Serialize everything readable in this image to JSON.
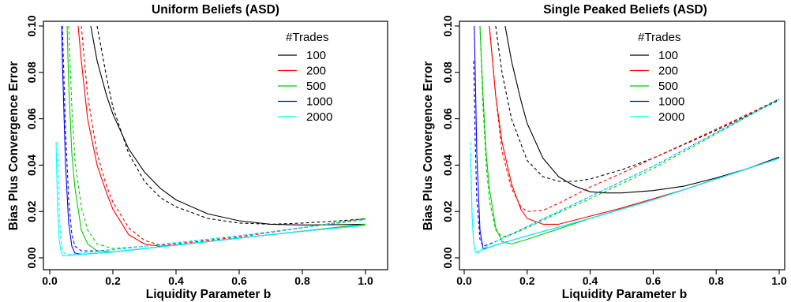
{
  "chart_data": [
    {
      "type": "line",
      "title": "Uniform Beliefs (ASD)",
      "xlabel": "Liquidity Parameter b",
      "ylabel": "Bias Plus Convergence Error",
      "xlim": [
        0,
        1.0
      ],
      "ylim": [
        0,
        0.1
      ],
      "xticks": [
        "0.0",
        "0.2",
        "0.4",
        "0.6",
        "0.8",
        "1.0"
      ],
      "yticks": [
        "0.00",
        "0.02",
        "0.04",
        "0.06",
        "0.08",
        "0.10"
      ],
      "legend": {
        "title": "#Trades",
        "position": "top-right",
        "items": [
          {
            "label": "100",
            "color": "#000000"
          },
          {
            "label": "200",
            "color": "#ff0000"
          },
          {
            "label": "500",
            "color": "#00cd00"
          },
          {
            "label": "1000",
            "color": "#0000ff"
          },
          {
            "label": "2000",
            "color": "#00ffff"
          }
        ]
      },
      "series": [
        {
          "name": "100",
          "style": "solid",
          "color": "#000000",
          "x": [
            0.13,
            0.15,
            0.18,
            0.2,
            0.25,
            0.3,
            0.35,
            0.4,
            0.5,
            0.6,
            0.7,
            0.8,
            0.9,
            1.0
          ],
          "y": [
            0.1,
            0.085,
            0.07,
            0.062,
            0.047,
            0.037,
            0.03,
            0.025,
            0.019,
            0.016,
            0.0145,
            0.0142,
            0.0143,
            0.0145
          ]
        },
        {
          "name": "100",
          "style": "dashed",
          "color": "#000000",
          "x": [
            0.15,
            0.18,
            0.2,
            0.25,
            0.3,
            0.35,
            0.4,
            0.5,
            0.6,
            0.7,
            0.8,
            0.9,
            1.0
          ],
          "y": [
            0.1,
            0.078,
            0.065,
            0.045,
            0.033,
            0.026,
            0.022,
            0.017,
            0.015,
            0.0145,
            0.015,
            0.0158,
            0.0168
          ]
        },
        {
          "name": "200",
          "style": "solid",
          "color": "#ff0000",
          "x": [
            0.09,
            0.1,
            0.12,
            0.15,
            0.18,
            0.2,
            0.25,
            0.3,
            0.35,
            0.4,
            0.6,
            0.8,
            1.0
          ],
          "y": [
            0.1,
            0.085,
            0.06,
            0.04,
            0.028,
            0.021,
            0.01,
            0.006,
            0.005,
            0.0055,
            0.0085,
            0.0115,
            0.0145
          ]
        },
        {
          "name": "200",
          "style": "dashed",
          "color": "#ff0000",
          "x": [
            0.1,
            0.12,
            0.15,
            0.18,
            0.2,
            0.25,
            0.3,
            0.35,
            0.4,
            0.6,
            0.8,
            1.0
          ],
          "y": [
            0.1,
            0.07,
            0.045,
            0.031,
            0.024,
            0.013,
            0.0075,
            0.0055,
            0.006,
            0.009,
            0.013,
            0.017
          ]
        },
        {
          "name": "500",
          "style": "solid",
          "color": "#00cd00",
          "x": [
            0.055,
            0.06,
            0.07,
            0.08,
            0.1,
            0.12,
            0.15,
            0.2,
            0.3,
            0.4,
            0.6,
            0.8,
            1.0
          ],
          "y": [
            0.1,
            0.075,
            0.045,
            0.03,
            0.012,
            0.006,
            0.003,
            0.0025,
            0.004,
            0.0055,
            0.0085,
            0.0115,
            0.0145
          ]
        },
        {
          "name": "500",
          "style": "dashed",
          "color": "#00cd00",
          "x": [
            0.06,
            0.07,
            0.08,
            0.1,
            0.12,
            0.15,
            0.2,
            0.3,
            0.4,
            0.6,
            0.8,
            1.0
          ],
          "y": [
            0.1,
            0.065,
            0.042,
            0.022,
            0.012,
            0.006,
            0.004,
            0.005,
            0.0065,
            0.0095,
            0.013,
            0.017
          ]
        },
        {
          "name": "1000",
          "style": "solid",
          "color": "#0000ff",
          "x": [
            0.038,
            0.04,
            0.05,
            0.06,
            0.07,
            0.08,
            0.1,
            0.15,
            0.2,
            0.4,
            0.6,
            0.8,
            1.0
          ],
          "y": [
            0.1,
            0.085,
            0.04,
            0.015,
            0.005,
            0.002,
            0.0015,
            0.002,
            0.0025,
            0.0055,
            0.0085,
            0.0115,
            0.014
          ]
        },
        {
          "name": "1000",
          "style": "dashed",
          "color": "#0000ff",
          "x": [
            0.04,
            0.05,
            0.06,
            0.07,
            0.08,
            0.1,
            0.15,
            0.2,
            0.4,
            0.6,
            0.8,
            1.0
          ],
          "y": [
            0.1,
            0.055,
            0.025,
            0.01,
            0.005,
            0.003,
            0.003,
            0.0035,
            0.0065,
            0.0095,
            0.013,
            0.0165
          ]
        },
        {
          "name": "2000",
          "style": "solid",
          "color": "#00ffff",
          "x": [
            0.02,
            0.025,
            0.03,
            0.035,
            0.04,
            0.05,
            0.06,
            0.1,
            0.2,
            0.4,
            0.6,
            0.8,
            1.0
          ],
          "y": [
            0.05,
            0.02,
            0.008,
            0.003,
            0.001,
            0.0008,
            0.001,
            0.0015,
            0.0025,
            0.0055,
            0.0085,
            0.0115,
            0.014
          ]
        },
        {
          "name": "2000",
          "style": "dashed",
          "color": "#00ffff",
          "x": [
            0.025,
            0.03,
            0.035,
            0.04,
            0.05,
            0.06,
            0.1,
            0.2,
            0.4,
            0.6,
            0.8,
            1.0
          ],
          "y": [
            0.05,
            0.02,
            0.008,
            0.003,
            0.0015,
            0.0015,
            0.002,
            0.0035,
            0.0065,
            0.0095,
            0.013,
            0.0165
          ]
        }
      ]
    },
    {
      "type": "line",
      "title": "Single Peaked Beliefs (ASD)",
      "xlabel": "Liquidity Parameter b",
      "ylabel": "Bias Plus Convergence Error",
      "xlim": [
        0,
        1.0
      ],
      "ylim": [
        0,
        0.1
      ],
      "xticks": [
        "0.0",
        "0.2",
        "0.4",
        "0.6",
        "0.8",
        "1.0"
      ],
      "yticks": [
        "0.00",
        "0.02",
        "0.04",
        "0.06",
        "0.08",
        "0.10"
      ],
      "legend": {
        "title": "#Trades",
        "position": "top-right",
        "items": [
          {
            "label": "100",
            "color": "#000000"
          },
          {
            "label": "200",
            "color": "#ff0000"
          },
          {
            "label": "500",
            "color": "#00cd00"
          },
          {
            "label": "1000",
            "color": "#0000ff"
          },
          {
            "label": "2000",
            "color": "#00ffff"
          }
        ]
      },
      "series": [
        {
          "name": "100",
          "style": "solid",
          "color": "#000000",
          "x": [
            0.13,
            0.15,
            0.18,
            0.2,
            0.25,
            0.3,
            0.35,
            0.4,
            0.45,
            0.5,
            0.6,
            0.7,
            0.8,
            0.9,
            1.0
          ],
          "y": [
            0.1,
            0.085,
            0.068,
            0.058,
            0.043,
            0.035,
            0.031,
            0.0285,
            0.028,
            0.028,
            0.029,
            0.031,
            0.0345,
            0.0385,
            0.0435
          ]
        },
        {
          "name": "100",
          "style": "dashed",
          "color": "#000000",
          "x": [
            0.1,
            0.12,
            0.15,
            0.2,
            0.25,
            0.3,
            0.35,
            0.4,
            0.5,
            0.6,
            0.7,
            0.8,
            0.9,
            1.0
          ],
          "y": [
            0.1,
            0.08,
            0.06,
            0.042,
            0.035,
            0.033,
            0.033,
            0.034,
            0.038,
            0.043,
            0.049,
            0.055,
            0.0615,
            0.068
          ]
        },
        {
          "name": "200",
          "style": "solid",
          "color": "#ff0000",
          "x": [
            0.08,
            0.1,
            0.12,
            0.15,
            0.18,
            0.2,
            0.25,
            0.3,
            0.4,
            0.5,
            0.6,
            0.7,
            0.8,
            0.9,
            1.0
          ],
          "y": [
            0.1,
            0.07,
            0.05,
            0.032,
            0.021,
            0.017,
            0.0145,
            0.0145,
            0.018,
            0.0215,
            0.0255,
            0.0295,
            0.034,
            0.0385,
            0.043
          ]
        },
        {
          "name": "200",
          "style": "dashed",
          "color": "#ff0000",
          "x": [
            0.08,
            0.1,
            0.12,
            0.15,
            0.18,
            0.2,
            0.25,
            0.3,
            0.4,
            0.5,
            0.6,
            0.8,
            1.0
          ],
          "y": [
            0.1,
            0.07,
            0.046,
            0.03,
            0.022,
            0.02,
            0.0205,
            0.0235,
            0.0305,
            0.0365,
            0.043,
            0.0555,
            0.0685
          ]
        },
        {
          "name": "500",
          "style": "solid",
          "color": "#00cd00",
          "x": [
            0.05,
            0.06,
            0.07,
            0.08,
            0.1,
            0.12,
            0.15,
            0.2,
            0.3,
            0.4,
            0.6,
            0.8,
            1.0
          ],
          "y": [
            0.1,
            0.07,
            0.045,
            0.03,
            0.013,
            0.007,
            0.006,
            0.008,
            0.0125,
            0.017,
            0.025,
            0.034,
            0.043
          ]
        },
        {
          "name": "500",
          "style": "dashed",
          "color": "#00cd00",
          "x": [
            0.05,
            0.06,
            0.07,
            0.08,
            0.1,
            0.12,
            0.15,
            0.2,
            0.3,
            0.4,
            0.6,
            0.8,
            1.0
          ],
          "y": [
            0.1,
            0.065,
            0.04,
            0.025,
            0.012,
            0.009,
            0.01,
            0.013,
            0.0195,
            0.0255,
            0.0385,
            0.0535,
            0.0685
          ]
        },
        {
          "name": "1000",
          "style": "solid",
          "color": "#0000ff",
          "x": [
            0.032,
            0.035,
            0.04,
            0.05,
            0.06,
            0.08,
            0.1,
            0.2,
            0.4,
            0.6,
            0.8,
            1.0
          ],
          "y": [
            0.1,
            0.08,
            0.045,
            0.012,
            0.004,
            0.0045,
            0.0055,
            0.0095,
            0.017,
            0.025,
            0.034,
            0.043
          ]
        },
        {
          "name": "1000",
          "style": "dashed",
          "color": "#0000ff",
          "x": [
            0.03,
            0.035,
            0.04,
            0.05,
            0.06,
            0.08,
            0.1,
            0.2,
            0.4,
            0.6,
            0.8,
            1.0
          ],
          "y": [
            0.085,
            0.05,
            0.025,
            0.008,
            0.005,
            0.006,
            0.007,
            0.0135,
            0.0265,
            0.0395,
            0.054,
            0.0685
          ]
        },
        {
          "name": "2000",
          "style": "solid",
          "color": "#00ffff",
          "x": [
            0.02,
            0.025,
            0.03,
            0.035,
            0.04,
            0.05,
            0.1,
            0.2,
            0.4,
            0.6,
            0.8,
            1.0
          ],
          "y": [
            0.045,
            0.018,
            0.006,
            0.0025,
            0.002,
            0.003,
            0.0055,
            0.0095,
            0.017,
            0.025,
            0.034,
            0.043
          ]
        },
        {
          "name": "2000",
          "style": "dashed",
          "color": "#00ffff",
          "x": [
            0.02,
            0.025,
            0.03,
            0.035,
            0.04,
            0.05,
            0.1,
            0.2,
            0.4,
            0.6,
            0.8,
            1.0
          ],
          "y": [
            0.05,
            0.02,
            0.007,
            0.003,
            0.0025,
            0.0035,
            0.007,
            0.0135,
            0.0265,
            0.0395,
            0.054,
            0.0685
          ]
        }
      ]
    }
  ]
}
